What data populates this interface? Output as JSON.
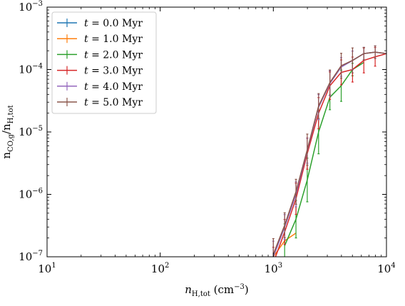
{
  "chart_data": {
    "type": "line",
    "title": "",
    "xlabel": "n_H,tot (cm^-3)",
    "ylabel": "n_CO,g / n_H,tot",
    "xscale": "log",
    "yscale": "log",
    "xlim": [
      10,
      10000
    ],
    "ylim": [
      1e-07,
      0.001
    ],
    "x_ticks": [
      {
        "value": 10,
        "base": "10",
        "exp": "1"
      },
      {
        "value": 100,
        "base": "10",
        "exp": "2"
      },
      {
        "value": 1000,
        "base": "10",
        "exp": "3"
      },
      {
        "value": 10000,
        "base": "10",
        "exp": "4"
      }
    ],
    "y_ticks": [
      {
        "value": 1e-07,
        "base": "10",
        "exp": "−7"
      },
      {
        "value": 1e-06,
        "base": "10",
        "exp": "−6"
      },
      {
        "value": 1e-05,
        "base": "10",
        "exp": "−5"
      },
      {
        "value": 0.0001,
        "base": "10",
        "exp": "−4"
      },
      {
        "value": 0.001,
        "base": "10",
        "exp": "−3"
      }
    ],
    "grid": false,
    "legend_position": "top-left",
    "series": [
      {
        "name": "t = 0.0 Myr",
        "label_value": "0.0",
        "color": "#1f77b4",
        "x": [
          1000,
          1259,
          1585,
          1995,
          2512,
          3162,
          3981,
          5012,
          6310,
          7943,
          10000
        ],
        "y": [
          1e-07,
          3e-07,
          1e-06,
          5e-06,
          2.5e-05,
          6e-05,
          0.00011,
          0.00014,
          0.00018,
          0.00019,
          0.00018
        ],
        "yerr": [
          0,
          0,
          0,
          0,
          0,
          0,
          0,
          0,
          0,
          0,
          0
        ]
      },
      {
        "name": "t = 1.0 Myr",
        "label_value": "1.0",
        "color": "#ff7f0e",
        "x": [
          1000,
          1259,
          1585
        ],
        "y": [
          1e-07,
          1.8e-07,
          2.4e-07
        ],
        "yerr": [
          0,
          0,
          0
        ]
      },
      {
        "name": "t = 2.0 Myr",
        "label_value": "2.0",
        "color": "#2ca02c",
        "x": [
          1259,
          1585,
          1995,
          2512,
          3162,
          3981,
          5012,
          6310
        ],
        "y": [
          1.5e-07,
          4e-07,
          1.7e-06,
          1e-05,
          3.6e-05,
          5.5e-05,
          0.0001,
          0.00013
        ],
        "yerr": [
          0.35,
          0.3,
          0.35,
          0.35,
          0.2,
          0.25,
          0.1,
          0
        ]
      },
      {
        "name": "t = 3.0 Myr",
        "label_value": "3.0",
        "color": "#d62728",
        "x": [
          1000,
          1259,
          1585,
          1995,
          2512,
          3162,
          3981,
          5012,
          6310,
          7943,
          10000
        ],
        "y": [
          8e-08,
          2.5e-07,
          8.5e-07,
          4.5e-06,
          2e-05,
          5.5e-05,
          9e-05,
          0.0001,
          0.00014,
          0.00016,
          0.00018
        ],
        "yerr": [
          0.25,
          0.2,
          0.25,
          0.25,
          0.25,
          0.22,
          0.2,
          0.2,
          0.2,
          0.15,
          0
        ]
      },
      {
        "name": "t = 4.0 Myr",
        "label_value": "4.0",
        "color": "#9467bd",
        "x": [
          1000,
          1259,
          1585,
          1995,
          2512,
          3162,
          3981,
          5012,
          6310,
          7943,
          10000
        ],
        "y": [
          1e-07,
          3e-07,
          1e-06,
          5e-06,
          2.5e-05,
          6e-05,
          0.00011,
          0.00014,
          0.00018,
          0.00019,
          0.00018
        ],
        "yerr": [
          0.25,
          0.2,
          0.2,
          0.2,
          0.2,
          0.2,
          0.15,
          0.15,
          0.1,
          0.1,
          0
        ]
      },
      {
        "name": "t = 5.0 Myr",
        "label_value": "5.0",
        "color": "#8c564b",
        "x": [
          1000,
          1259,
          1585,
          1995,
          2512,
          3162,
          3981,
          5012,
          6310,
          7943,
          10000
        ],
        "y": [
          1.1e-07,
          3.2e-07,
          1.1e-06,
          5.2e-06,
          2.6e-05,
          6.2e-05,
          0.000115,
          0.00014,
          0.00018,
          0.00019,
          0.00018
        ],
        "yerr": [
          0.25,
          0.2,
          0.2,
          0.25,
          0.2,
          0.2,
          0.2,
          0.2,
          0.1,
          0.1,
          0
        ]
      }
    ]
  }
}
